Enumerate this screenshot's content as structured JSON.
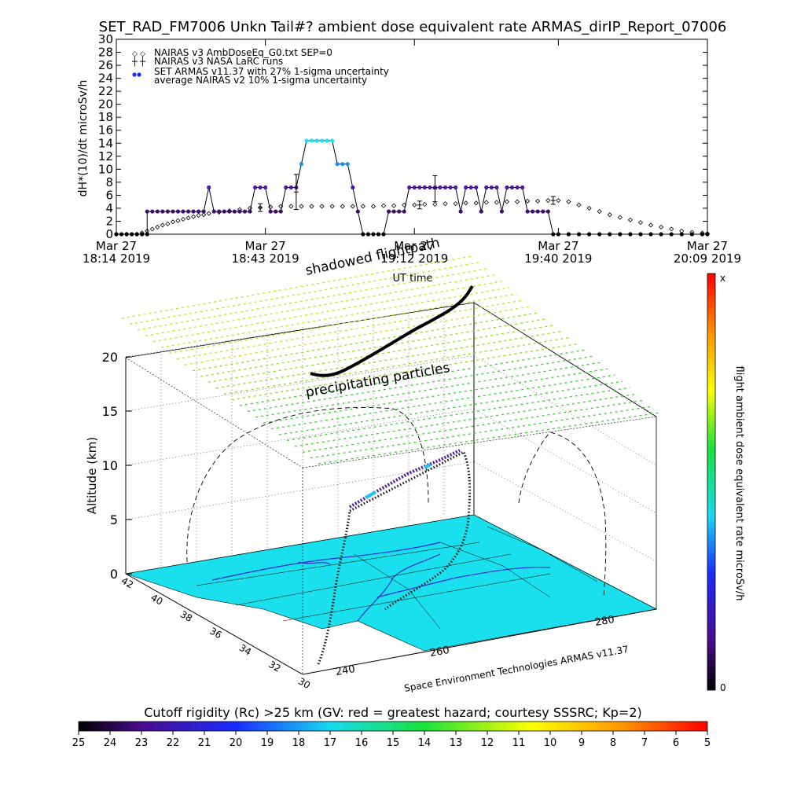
{
  "title": "SET_RAD_FM7006  Unkn Tail#? ambient dose equivalent rate ARMAS_dirIP_Report_07006",
  "chart_data": [
    {
      "type": "scatter",
      "ylabel": "dH*(10)/dt microSv/h",
      "xlabel": "UT time",
      "ylim": [
        0,
        30
      ],
      "yticks": [
        0,
        2,
        4,
        6,
        8,
        10,
        12,
        14,
        16,
        18,
        20,
        22,
        24,
        26,
        28,
        30
      ],
      "xlim": [
        0,
        115
      ],
      "xticks": [
        {
          "v": 0,
          "line1": "Mar 27",
          "line2": "18:14 2019"
        },
        {
          "v": 29,
          "line1": "Mar 27",
          "line2": "18:43 2019"
        },
        {
          "v": 58,
          "line1": "Mar 27",
          "line2": "19:12 2019"
        },
        {
          "v": 86,
          "line1": "Mar 27",
          "line2": "19:40 2019"
        },
        {
          "v": 115,
          "line1": "Mar 27",
          "line2": "20:09 2019"
        }
      ],
      "legend": [
        "NAIRAS v3 AmbDoseEq_G0.txt SEP=0",
        "NAIRAS v3 NASA LaRC runs",
        "SET ARMAS v11.37 with 27% 1-sigma uncertainty",
        "average NAIRAS v2 10% 1-sigma uncertainty"
      ],
      "series": [
        {
          "name": "SET ARMAS v11.37 with 27% 1-sigma uncertainty",
          "points": [
            [
              0,
              0
            ],
            [
              1,
              0
            ],
            [
              2,
              0
            ],
            [
              3,
              0
            ],
            [
              4,
              0
            ],
            [
              5,
              0
            ],
            [
              6,
              0
            ],
            [
              6,
              3.5
            ],
            [
              7,
              3.5
            ],
            [
              8,
              3.5
            ],
            [
              9,
              3.5
            ],
            [
              10,
              3.5
            ],
            [
              11,
              3.5
            ],
            [
              12,
              3.5
            ],
            [
              13,
              3.5
            ],
            [
              14,
              3.5
            ],
            [
              15,
              3.5
            ],
            [
              16,
              3.5
            ],
            [
              17,
              3.5
            ],
            [
              18,
              7.2
            ],
            [
              19,
              3.5
            ],
            [
              20,
              3.5
            ],
            [
              21,
              3.5
            ],
            [
              22,
              3.5
            ],
            [
              23,
              3.5
            ],
            [
              24,
              3.5
            ],
            [
              25,
              3.5
            ],
            [
              26,
              3.5
            ],
            [
              27,
              7.2
            ],
            [
              28,
              7.2
            ],
            [
              29,
              7.2
            ],
            [
              30,
              3.5
            ],
            [
              31,
              3.5
            ],
            [
              32,
              3.5
            ],
            [
              33,
              7.2
            ],
            [
              34,
              7.2
            ],
            [
              35,
              7.2
            ],
            [
              36,
              10.8
            ],
            [
              37,
              14.4
            ],
            [
              38,
              14.4
            ],
            [
              39,
              14.4
            ],
            [
              40,
              14.4
            ],
            [
              41,
              14.4
            ],
            [
              42,
              14.4
            ],
            [
              43,
              10.8
            ],
            [
              44,
              10.8
            ],
            [
              45,
              10.8
            ],
            [
              46,
              7.2
            ],
            [
              47,
              3.5
            ],
            [
              48,
              0
            ],
            [
              49,
              0
            ],
            [
              50,
              0
            ],
            [
              51,
              0
            ],
            [
              52,
              0
            ],
            [
              53,
              3.5
            ],
            [
              54,
              3.5
            ],
            [
              55,
              3.5
            ],
            [
              56,
              3.5
            ],
            [
              57,
              7.2
            ],
            [
              58,
              7.2
            ],
            [
              59,
              7.2
            ],
            [
              60,
              7.2
            ],
            [
              61,
              7.2
            ],
            [
              62,
              7.2
            ],
            [
              63,
              7.2
            ],
            [
              64,
              7.2
            ],
            [
              65,
              7.2
            ],
            [
              66,
              7.2
            ],
            [
              67,
              3.5
            ],
            [
              68,
              7.2
            ],
            [
              69,
              7.2
            ],
            [
              70,
              7.2
            ],
            [
              71,
              3.5
            ],
            [
              72,
              7.2
            ],
            [
              73,
              7.2
            ],
            [
              74,
              7.2
            ],
            [
              75,
              3.5
            ],
            [
              76,
              7.2
            ],
            [
              77,
              7.2
            ],
            [
              78,
              7.2
            ],
            [
              79,
              7.2
            ],
            [
              80,
              3.5
            ],
            [
              81,
              3.5
            ],
            [
              82,
              3.5
            ],
            [
              83,
              3.5
            ],
            [
              84,
              3.5
            ],
            [
              85,
              0
            ],
            [
              86,
              0
            ],
            [
              88,
              0
            ],
            [
              90,
              0
            ],
            [
              92,
              0
            ],
            [
              94,
              0
            ],
            [
              96,
              0
            ],
            [
              98,
              0
            ],
            [
              100,
              0
            ],
            [
              102,
              0
            ],
            [
              104,
              0
            ],
            [
              106,
              0
            ],
            [
              108,
              0
            ],
            [
              110,
              0
            ],
            [
              112,
              0
            ],
            [
              114,
              0
            ],
            [
              115,
              0
            ]
          ]
        },
        {
          "name": "NAIRAS v3 AmbDoseEq_G0.txt SEP=0",
          "points": [
            [
              0,
              0
            ],
            [
              2,
              0
            ],
            [
              4,
              0
            ],
            [
              5,
              0.2
            ],
            [
              6,
              0.5
            ],
            [
              7,
              0.8
            ],
            [
              8,
              1.1
            ],
            [
              9,
              1.4
            ],
            [
              10,
              1.6
            ],
            [
              11,
              1.9
            ],
            [
              12,
              2.1
            ],
            [
              13,
              2.3
            ],
            [
              14,
              2.5
            ],
            [
              15,
              2.7
            ],
            [
              16,
              2.9
            ],
            [
              17,
              3.0
            ],
            [
              18,
              3.2
            ],
            [
              20,
              3.4
            ],
            [
              22,
              3.6
            ],
            [
              24,
              3.8
            ],
            [
              26,
              4.0
            ],
            [
              28,
              4.1
            ],
            [
              30,
              4.2
            ],
            [
              32,
              4.3
            ],
            [
              34,
              4.3
            ],
            [
              36,
              4.3
            ],
            [
              38,
              4.3
            ],
            [
              40,
              4.3
            ],
            [
              42,
              4.3
            ],
            [
              44,
              4.3
            ],
            [
              46,
              4.3
            ],
            [
              48,
              4.3
            ],
            [
              50,
              4.3
            ],
            [
              52,
              4.4
            ],
            [
              54,
              4.4
            ],
            [
              56,
              4.5
            ],
            [
              58,
              4.5
            ],
            [
              60,
              4.6
            ],
            [
              62,
              4.6
            ],
            [
              64,
              4.7
            ],
            [
              66,
              4.7
            ],
            [
              68,
              4.8
            ],
            [
              70,
              4.8
            ],
            [
              72,
              4.9
            ],
            [
              74,
              4.9
            ],
            [
              76,
              5.0
            ],
            [
              78,
              5.0
            ],
            [
              80,
              5.1
            ],
            [
              82,
              5.1
            ],
            [
              84,
              5.2
            ],
            [
              86,
              5.2
            ],
            [
              88,
              5.0
            ],
            [
              90,
              4.5
            ],
            [
              92,
              4.0
            ],
            [
              94,
              3.5
            ],
            [
              96,
              3.0
            ],
            [
              98,
              2.6
            ],
            [
              100,
              2.2
            ],
            [
              102,
              1.8
            ],
            [
              104,
              1.4
            ],
            [
              106,
              1.1
            ],
            [
              108,
              0.8
            ],
            [
              110,
              0.5
            ],
            [
              112,
              0.3
            ],
            [
              114,
              0.2
            ],
            [
              115,
              0.1
            ]
          ]
        },
        {
          "name": "average NAIRAS v2 10% 1-sigma uncertainty",
          "errorbars": [
            [
              28,
              4.1,
              0.6
            ],
            [
              35,
              6.5,
              2.7
            ],
            [
              59,
              4.5,
              0.6
            ],
            [
              62,
              7.0,
              2.0
            ],
            [
              85,
              5.2,
              0.6
            ]
          ]
        }
      ],
      "colors": {
        "value_3.5": "#3a1168",
        "value_7.2": "#4b1ba0",
        "value_10.8": "#1e8fe6",
        "value_14.4": "#19e6f0",
        "zero": "#000000"
      }
    },
    {
      "type": "other",
      "description_labels": {
        "zlabel": "Altitude (km)",
        "zticks": [
          "0",
          "5",
          "10",
          "15",
          "20"
        ],
        "lat_ticks": [
          "42",
          "40",
          "38",
          "36",
          "34",
          "32",
          "30"
        ],
        "lon_ticks": [
          "240",
          "260",
          "280"
        ],
        "annotation_shadow": "shadowed flightpath",
        "annotation_precip": "precipitating particles",
        "credit": "Space Environment Technologies ARMAS v11.37"
      },
      "colorbar_right": {
        "label": "flight ambient dose equivalent rate microSv/h",
        "top_label": "x",
        "bottom_label": "0"
      },
      "colorbar_bottom": {
        "label": "Cutoff rigidity (Rc) >25 km (GV: red = greatest hazard; courtesy SSSRC; Kp=2)",
        "ticks": [
          "25",
          "24",
          "23",
          "22",
          "21",
          "20",
          "19",
          "18",
          "17",
          "16",
          "15",
          "14",
          "13",
          "12",
          "11",
          "10",
          "9",
          "8",
          "7",
          "6",
          "5"
        ]
      }
    }
  ]
}
